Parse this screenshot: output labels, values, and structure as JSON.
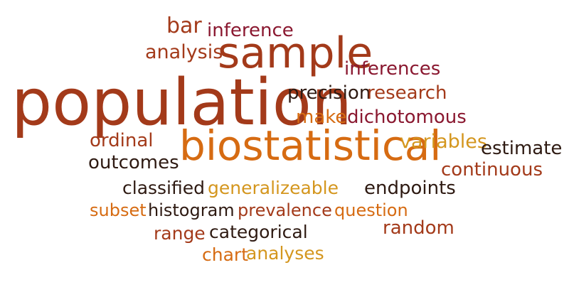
{
  "word_cloud": {
    "words": {
      "population": "population",
      "biostatistical": "biostatistical",
      "sample": "sample",
      "bar": "bar",
      "inference": "inference",
      "analysis": "analysis",
      "inferences": "inferences",
      "precision": "precision",
      "research": "research",
      "make": "make",
      "dichotomous": "dichotomous",
      "ordinal": "ordinal",
      "variables": "variables",
      "estimate": "estimate",
      "outcomes": "outcomes",
      "continuous": "continuous",
      "classified": "classified",
      "generalizeable": "generalizeable",
      "endpoints": "endpoints",
      "subset": "subset",
      "histogram": "histogram",
      "prevalence": "prevalence",
      "question": "question",
      "range": "range",
      "categorical": "categorical",
      "random": "random",
      "chart": "chart",
      "analyses": "analyses"
    },
    "colors": {
      "rust": "#a33a1a",
      "orange": "#d66b12",
      "gold": "#d4961e",
      "crimson": "#8a1830",
      "dark_brown": "#2e1a12",
      "background": "#ffffff"
    }
  }
}
